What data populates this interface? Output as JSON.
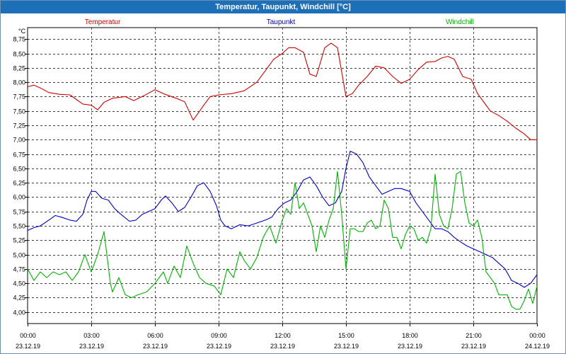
{
  "window": {
    "title": "Temperatur, Taupunkt, Windchill [°C]"
  },
  "colors": {
    "temperatur": "#d40000",
    "taupunkt": "#0000c8",
    "windchill": "#00b400",
    "title_bg": "#1d6fb8"
  },
  "chart_data": {
    "type": "line",
    "title": "Temperatur, Taupunkt, Windchill [°C]",
    "ylabel": "°C",
    "ylim": [
      3.8,
      8.95
    ],
    "yticks": [
      4.0,
      4.25,
      4.5,
      4.75,
      5.0,
      5.25,
      5.5,
      5.75,
      6.0,
      6.25,
      6.5,
      6.75,
      7.0,
      7.25,
      7.5,
      7.75,
      8.0,
      8.25,
      8.5,
      8.75
    ],
    "ytick_labels": [
      "4,00",
      "4,25",
      "4,50",
      "4,75",
      "5,00",
      "5,25",
      "5,50",
      "5,75",
      "6,00",
      "6,25",
      "6,50",
      "6,75",
      "7,00",
      "7,25",
      "7,50",
      "7,75",
      "8,00",
      "8,25",
      "8,50",
      "8,75"
    ],
    "xlim": [
      0,
      24
    ],
    "xticks": [
      {
        "time": "00:00",
        "date": "23.12.19"
      },
      {
        "time": "03:00",
        "date": "23.12.19"
      },
      {
        "time": "06:00",
        "date": "23.12.19"
      },
      {
        "time": "09:00",
        "date": "23.12.19"
      },
      {
        "time": "12:00",
        "date": "23.12.19"
      },
      {
        "time": "15:00",
        "date": "23.12.19"
      },
      {
        "time": "18:00",
        "date": "23.12.19"
      },
      {
        "time": "21:00",
        "date": "23.12.19"
      },
      {
        "time": "00:00",
        "date": "24.12.19"
      }
    ],
    "series": [
      {
        "name": "Temperatur",
        "key": "temperatur",
        "points": [
          [
            0,
            7.92
          ],
          [
            0.3,
            7.95
          ],
          [
            0.6,
            7.9
          ],
          [
            1,
            7.82
          ],
          [
            1.5,
            7.79
          ],
          [
            2,
            7.78
          ],
          [
            2.3,
            7.7
          ],
          [
            2.6,
            7.62
          ],
          [
            3,
            7.6
          ],
          [
            3.3,
            7.52
          ],
          [
            3.6,
            7.65
          ],
          [
            4,
            7.72
          ],
          [
            4.6,
            7.75
          ],
          [
            5,
            7.68
          ],
          [
            5.5,
            7.77
          ],
          [
            6,
            7.87
          ],
          [
            6.4,
            7.8
          ],
          [
            7,
            7.72
          ],
          [
            7.4,
            7.66
          ],
          [
            7.8,
            7.34
          ],
          [
            8.3,
            7.6
          ],
          [
            8.6,
            7.75
          ],
          [
            9,
            7.78
          ],
          [
            9.6,
            7.8
          ],
          [
            10.2,
            7.85
          ],
          [
            10.8,
            8.0
          ],
          [
            11.2,
            8.2
          ],
          [
            11.6,
            8.4
          ],
          [
            12,
            8.5
          ],
          [
            12.3,
            8.6
          ],
          [
            12.6,
            8.6
          ],
          [
            13,
            8.52
          ],
          [
            13.3,
            8.14
          ],
          [
            13.6,
            8.1
          ],
          [
            14,
            8.6
          ],
          [
            14.3,
            8.68
          ],
          [
            14.6,
            8.6
          ],
          [
            15,
            7.75
          ],
          [
            15.3,
            7.8
          ],
          [
            15.6,
            7.95
          ],
          [
            16,
            8.1
          ],
          [
            16.4,
            8.28
          ],
          [
            16.8,
            8.25
          ],
          [
            17.2,
            8.1
          ],
          [
            17.6,
            7.98
          ],
          [
            18,
            8.05
          ],
          [
            18.4,
            8.22
          ],
          [
            18.8,
            8.35
          ],
          [
            19.2,
            8.36
          ],
          [
            19.5,
            8.42
          ],
          [
            19.8,
            8.45
          ],
          [
            20.1,
            8.4
          ],
          [
            20.5,
            8.1
          ],
          [
            20.9,
            8.05
          ],
          [
            21.2,
            7.8
          ],
          [
            21.5,
            7.65
          ],
          [
            21.8,
            7.5
          ],
          [
            22.2,
            7.42
          ],
          [
            22.6,
            7.32
          ],
          [
            23,
            7.2
          ],
          [
            23.4,
            7.1
          ],
          [
            23.7,
            7.0
          ],
          [
            24,
            7.0
          ]
        ]
      },
      {
        "name": "Taupunkt",
        "key": "taupunkt",
        "points": [
          [
            0,
            5.42
          ],
          [
            0.3,
            5.47
          ],
          [
            0.6,
            5.5
          ],
          [
            1,
            5.6
          ],
          [
            1.3,
            5.68
          ],
          [
            1.6,
            5.65
          ],
          [
            2,
            5.6
          ],
          [
            2.3,
            5.58
          ],
          [
            2.6,
            5.7
          ],
          [
            2.8,
            5.95
          ],
          [
            3,
            6.1
          ],
          [
            3.2,
            6.1
          ],
          [
            3.5,
            5.98
          ],
          [
            3.8,
            5.95
          ],
          [
            4.1,
            5.8
          ],
          [
            4.4,
            5.7
          ],
          [
            4.8,
            5.58
          ],
          [
            5.1,
            5.6
          ],
          [
            5.4,
            5.7
          ],
          [
            5.7,
            5.75
          ],
          [
            6,
            5.8
          ],
          [
            6.3,
            5.95
          ],
          [
            6.5,
            6.02
          ],
          [
            6.8,
            5.9
          ],
          [
            7.1,
            5.75
          ],
          [
            7.4,
            5.82
          ],
          [
            7.7,
            6.0
          ],
          [
            8,
            6.2
          ],
          [
            8.3,
            6.25
          ],
          [
            8.6,
            6.1
          ],
          [
            8.9,
            5.85
          ],
          [
            9.1,
            5.6
          ],
          [
            9.3,
            5.5
          ],
          [
            9.6,
            5.45
          ],
          [
            10,
            5.52
          ],
          [
            10.4,
            5.5
          ],
          [
            10.8,
            5.55
          ],
          [
            11.2,
            5.6
          ],
          [
            11.5,
            5.65
          ],
          [
            11.8,
            5.8
          ],
          [
            12.1,
            5.9
          ],
          [
            12.4,
            5.95
          ],
          [
            12.7,
            6.1
          ],
          [
            13,
            6.3
          ],
          [
            13.3,
            6.35
          ],
          [
            13.6,
            6.2
          ],
          [
            13.9,
            6.0
          ],
          [
            14.2,
            5.85
          ],
          [
            14.5,
            5.9
          ],
          [
            14.8,
            6.1
          ],
          [
            15,
            6.5
          ],
          [
            15.2,
            6.8
          ],
          [
            15.5,
            6.75
          ],
          [
            15.8,
            6.6
          ],
          [
            16.1,
            6.35
          ],
          [
            16.4,
            6.2
          ],
          [
            16.7,
            6.05
          ],
          [
            17,
            6.1
          ],
          [
            17.3,
            6.15
          ],
          [
            17.6,
            6.15
          ],
          [
            18,
            6.1
          ],
          [
            18.3,
            5.9
          ],
          [
            18.6,
            5.75
          ],
          [
            18.9,
            5.6
          ],
          [
            19.2,
            5.45
          ],
          [
            19.5,
            5.45
          ],
          [
            19.8,
            5.4
          ],
          [
            20.1,
            5.3
          ],
          [
            20.4,
            5.22
          ],
          [
            20.7,
            5.15
          ],
          [
            21,
            5.1
          ],
          [
            21.3,
            5.05
          ],
          [
            21.6,
            5.0
          ],
          [
            21.9,
            4.95
          ],
          [
            22.2,
            4.85
          ],
          [
            22.5,
            4.75
          ],
          [
            22.8,
            4.55
          ],
          [
            23.1,
            4.5
          ],
          [
            23.4,
            4.43
          ],
          [
            23.7,
            4.5
          ],
          [
            24,
            4.65
          ]
        ]
      },
      {
        "name": "Windchill",
        "key": "windchill",
        "points": [
          [
            0,
            4.75
          ],
          [
            0.3,
            4.55
          ],
          [
            0.6,
            4.7
          ],
          [
            0.9,
            4.6
          ],
          [
            1.2,
            4.7
          ],
          [
            1.5,
            4.65
          ],
          [
            1.8,
            4.7
          ],
          [
            2.1,
            4.55
          ],
          [
            2.4,
            4.7
          ],
          [
            2.7,
            5.0
          ],
          [
            3,
            4.7
          ],
          [
            3.3,
            5.0
          ],
          [
            3.6,
            5.4
          ],
          [
            3.9,
            4.5
          ],
          [
            4,
            4.35
          ],
          [
            4.3,
            4.6
          ],
          [
            4.6,
            4.3
          ],
          [
            4.9,
            4.25
          ],
          [
            5.2,
            4.3
          ],
          [
            5.6,
            4.35
          ],
          [
            6,
            4.5
          ],
          [
            6.4,
            4.7
          ],
          [
            6.6,
            4.5
          ],
          [
            6.9,
            4.8
          ],
          [
            7.2,
            4.6
          ],
          [
            7.5,
            5.15
          ],
          [
            7.8,
            4.85
          ],
          [
            8.1,
            4.6
          ],
          [
            8.4,
            4.5
          ],
          [
            8.8,
            4.45
          ],
          [
            9.1,
            4.3
          ],
          [
            9.4,
            4.75
          ],
          [
            9.7,
            4.6
          ],
          [
            10,
            5.05
          ],
          [
            10.2,
            4.9
          ],
          [
            10.5,
            4.75
          ],
          [
            10.8,
            4.95
          ],
          [
            11.1,
            5.3
          ],
          [
            11.4,
            5.5
          ],
          [
            11.7,
            5.2
          ],
          [
            12,
            5.6
          ],
          [
            12.2,
            5.8
          ],
          [
            12.4,
            5.7
          ],
          [
            12.6,
            6.25
          ],
          [
            12.8,
            5.8
          ],
          [
            13,
            5.9
          ],
          [
            13.2,
            5.7
          ],
          [
            13.4,
            5.5
          ],
          [
            13.6,
            5.05
          ],
          [
            13.8,
            5.5
          ],
          [
            14,
            5.3
          ],
          [
            14.2,
            5.6
          ],
          [
            14.4,
            5.8
          ],
          [
            14.6,
            6.45
          ],
          [
            14.8,
            5.7
          ],
          [
            15,
            4.75
          ],
          [
            15.2,
            5.45
          ],
          [
            15.4,
            5.45
          ],
          [
            15.6,
            5.4
          ],
          [
            15.8,
            5.4
          ],
          [
            16,
            5.55
          ],
          [
            16.2,
            5.6
          ],
          [
            16.4,
            5.45
          ],
          [
            16.6,
            5.5
          ],
          [
            16.8,
            5.95
          ],
          [
            17,
            5.8
          ],
          [
            17.2,
            5.3
          ],
          [
            17.4,
            5.3
          ],
          [
            17.6,
            5.1
          ],
          [
            17.8,
            5.35
          ],
          [
            18,
            5.5
          ],
          [
            18.2,
            5.45
          ],
          [
            18.4,
            5.25
          ],
          [
            18.6,
            5.3
          ],
          [
            18.8,
            5.2
          ],
          [
            19,
            5.45
          ],
          [
            19.2,
            6.4
          ],
          [
            19.4,
            5.7
          ],
          [
            19.6,
            5.5
          ],
          [
            19.8,
            5.45
          ],
          [
            20,
            5.8
          ],
          [
            20.2,
            6.4
          ],
          [
            20.4,
            6.45
          ],
          [
            20.6,
            5.9
          ],
          [
            20.8,
            5.55
          ],
          [
            21,
            5.5
          ],
          [
            21.2,
            5.6
          ],
          [
            21.4,
            5.3
          ],
          [
            21.6,
            4.7
          ],
          [
            21.8,
            4.6
          ],
          [
            22,
            4.5
          ],
          [
            22.2,
            4.3
          ],
          [
            22.4,
            4.3
          ],
          [
            22.6,
            4.3
          ],
          [
            22.8,
            4.1
          ],
          [
            23,
            4.05
          ],
          [
            23.2,
            4.05
          ],
          [
            23.4,
            4.2
          ],
          [
            23.6,
            4.4
          ],
          [
            23.8,
            4.15
          ],
          [
            24,
            4.45
          ]
        ]
      }
    ]
  }
}
